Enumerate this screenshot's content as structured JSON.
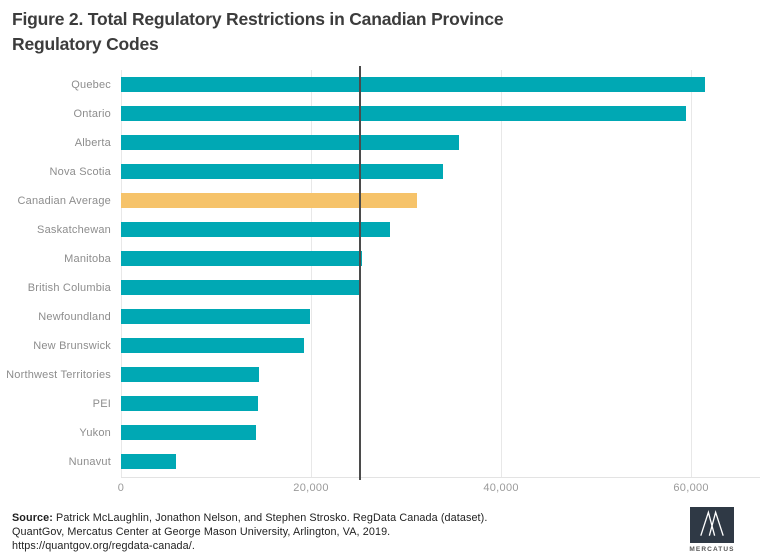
{
  "figure": {
    "title_lines": [
      "Figure 2. Total Regulatory Restrictions in Canadian Province",
      "Regulatory Codes"
    ]
  },
  "chart_data": {
    "type": "bar",
    "orientation": "horizontal",
    "title": "Figure 2. Total Regulatory Restrictions in Canadian Province Regulatory Codes",
    "xlabel": "",
    "ylabel": "",
    "xlim": [
      0,
      67250
    ],
    "grid": "vertical-only",
    "legend": "none",
    "ticks": [
      {
        "value": 0,
        "label": "0"
      },
      {
        "value": 20000,
        "label": "20,000"
      },
      {
        "value": 40000,
        "label": "40,000"
      },
      {
        "value": 60000,
        "label": "60,000"
      }
    ],
    "reference_line": {
      "value": 25000
    },
    "bar_colors": {
      "default": "#00a8b4",
      "highlight": "#f6c36a"
    },
    "rows": [
      {
        "label": "Quebec",
        "value": 61500,
        "highlight": false
      },
      {
        "label": "Ontario",
        "value": 59500,
        "highlight": false
      },
      {
        "label": "Alberta",
        "value": 35600,
        "highlight": false
      },
      {
        "label": "Nova Scotia",
        "value": 33900,
        "highlight": false
      },
      {
        "label": "Canadian Average",
        "value": 31100,
        "highlight": true
      },
      {
        "label": "Saskatchewan",
        "value": 28300,
        "highlight": false
      },
      {
        "label": "Manitoba",
        "value": 25400,
        "highlight": false
      },
      {
        "label": "British Columbia",
        "value": 25100,
        "highlight": false
      },
      {
        "label": "Newfoundland",
        "value": 19900,
        "highlight": false
      },
      {
        "label": "New Brunswick",
        "value": 19300,
        "highlight": false
      },
      {
        "label": "Northwest Territories",
        "value": 14500,
        "highlight": false
      },
      {
        "label": "PEI",
        "value": 14400,
        "highlight": false
      },
      {
        "label": "Yukon",
        "value": 14200,
        "highlight": false
      },
      {
        "label": "Nunavut",
        "value": 5800,
        "highlight": false
      }
    ]
  },
  "footer": {
    "source_label": "Source:",
    "source_line1_rest": "Patrick McLaughlin, Jonathon Nelson, and Stephen Strosko. RegData Canada (dataset).",
    "source_line2": "QuantGov, Mercatus Center at George Mason University, Arlington, VA, 2019.",
    "source_line3": "https://quantgov.org/regdata-canada/.",
    "logo_text": "MERCATUS"
  }
}
